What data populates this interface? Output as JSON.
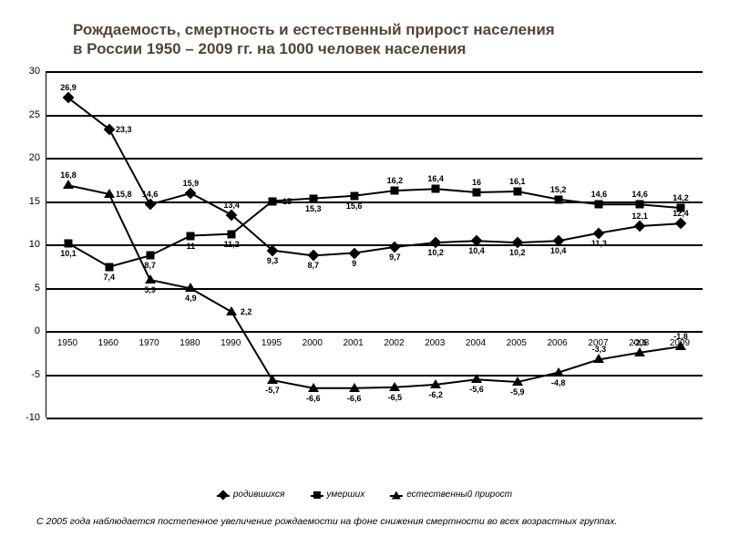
{
  "title_line1": "Рождаемость, смертность и естественный прирост населения",
  "title_line2": "в России 1950 – 2009 гг. на 1000 человек населения",
  "footnote": "С 2005 года наблюдается постепенное увеличение рождаемости на фоне снижения смертности во всех возрастных группах.",
  "chart": {
    "type": "line",
    "ylim": [
      -10,
      30
    ],
    "ytick_step": 5,
    "yticks": [
      -10,
      -5,
      0,
      5,
      10,
      15,
      20,
      25,
      30
    ],
    "categories": [
      "1950",
      "1960",
      "1970",
      "1980",
      "1990",
      "1995",
      "2000",
      "2001",
      "2002",
      "2003",
      "2004",
      "2005",
      "2006",
      "2007",
      "2008",
      "2009"
    ],
    "series": [
      {
        "name": "родившихся",
        "marker": "diamond",
        "values": [
          26.9,
          23.3,
          14.6,
          15.9,
          13.4,
          9.3,
          8.7,
          9,
          9.7,
          10.2,
          10.4,
          10.2,
          10.4,
          11.3,
          12.1,
          12.4
        ],
        "labels": [
          "26,9",
          "23,3",
          "14,6",
          "15,9",
          "13,4",
          "9,3",
          "8,7",
          "9",
          "9,7",
          "10,2",
          "10,4",
          "10,2",
          "10,4",
          "11,3",
          "12,1",
          "12,4"
        ],
        "labelPos": [
          "above",
          "right",
          "above",
          "above",
          "above",
          "below",
          "below",
          "below",
          "below",
          "below",
          "below",
          "below",
          "below",
          "below",
          "above",
          "above"
        ]
      },
      {
        "name": "умерших",
        "marker": "square",
        "values": [
          10.1,
          7.4,
          8.7,
          11,
          11.2,
          15,
          15.3,
          15.6,
          16.2,
          16.4,
          16,
          16.1,
          15.2,
          14.6,
          14.6,
          14.2
        ],
        "labels": [
          "10,1",
          "7,4",
          "8,7",
          "11",
          "11,2",
          "15",
          "15,3",
          "15,6",
          "16,2",
          "16,4",
          "16",
          "16,1",
          "15,2",
          "14,6",
          "14,6",
          "14,2"
        ],
        "labelPos": [
          "below",
          "below",
          "below",
          "below",
          "below",
          "right",
          "below",
          "below",
          "above",
          "above",
          "above",
          "above",
          "above",
          "above",
          "above",
          "above"
        ]
      },
      {
        "name": "естественный прирост",
        "marker": "triangle",
        "values": [
          16.8,
          15.8,
          5.9,
          4.9,
          2.2,
          -5.7,
          -6.6,
          -6.6,
          -6.5,
          -6.2,
          -5.6,
          -5.9,
          -4.8,
          -3.3,
          -2.5,
          -1.8
        ],
        "labels": [
          "16,8",
          "15,8",
          "5,9",
          "4,9",
          "2,2",
          "-5,7",
          "-6,6",
          "-6,6",
          "-6,5",
          "-6,2",
          "-5,6",
          "-5,9",
          "-4,8",
          "-3,3",
          "-2,5",
          "-1,8"
        ],
        "labelPos": [
          "above",
          "right",
          "below",
          "below",
          "right",
          "below",
          "below",
          "below",
          "below",
          "below",
          "below",
          "below",
          "below",
          "above",
          "above",
          "above"
        ]
      }
    ],
    "legend_items": [
      "родившихся",
      "умерших",
      "естественный прирост"
    ],
    "line_color": "#000000",
    "marker_color": "#000000",
    "grid_color": "#000000",
    "background_color": "#ffffff",
    "title_color": "#554433",
    "title_fontsize": 17,
    "label_fontsize": 9,
    "axis_fontsize": 10,
    "line_width": 2
  }
}
